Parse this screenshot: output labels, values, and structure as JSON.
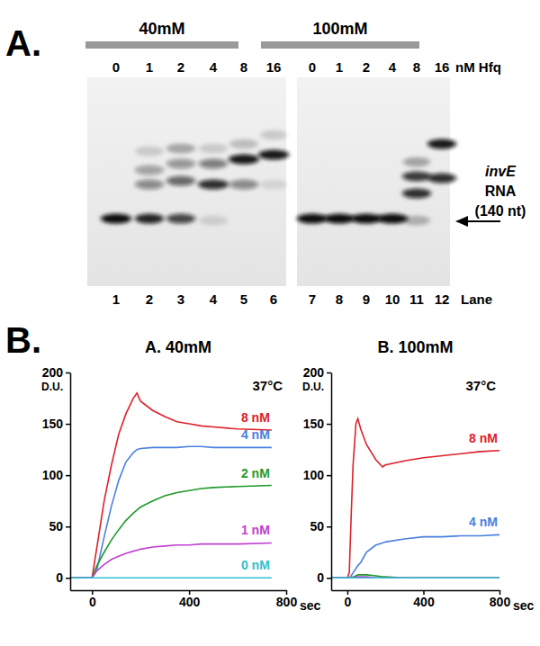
{
  "gel": {
    "panel_label": "A.",
    "panels": [
      {
        "label": "40mM",
        "concentrations": [
          0,
          1,
          2,
          4,
          8,
          16
        ],
        "lanes": [
          1,
          2,
          3,
          4,
          5,
          6
        ]
      },
      {
        "label": "100mM",
        "concentrations": [
          0,
          1,
          2,
          4,
          8,
          16
        ],
        "lanes": [
          7,
          8,
          9,
          10,
          11,
          12
        ]
      }
    ],
    "unit": "nM Hfq",
    "rna_label": [
      "invE",
      "RNA",
      "(140 nt)"
    ],
    "lane_title": "Lane"
  },
  "charts_label": "B.",
  "chart_data": [
    {
      "type": "line",
      "title": "A. 40mM",
      "annotation": "37°C",
      "ylabel": "D.U.",
      "xlabel": "sec",
      "x": [
        -90,
        0,
        20,
        50,
        80,
        110,
        140,
        170,
        185,
        200,
        250,
        300,
        350,
        400,
        450,
        500,
        600,
        740
      ],
      "series": [
        {
          "name": "8 nM",
          "color": "#e0202a",
          "values": [
            0,
            0,
            30,
            75,
            110,
            140,
            160,
            175,
            180,
            172,
            163,
            157,
            152,
            150,
            148,
            147,
            145,
            144
          ]
        },
        {
          "name": "4 nM",
          "color": "#4a80e0",
          "values": [
            0,
            0,
            8,
            40,
            70,
            95,
            113,
            122,
            125,
            126,
            127,
            127,
            127,
            128,
            128,
            127,
            127,
            127
          ]
        },
        {
          "name": "2 nM",
          "color": "#1f9a2a",
          "values": [
            0,
            0,
            12,
            25,
            37,
            47,
            56,
            63,
            66,
            69,
            75,
            80,
            83,
            85,
            87,
            88,
            89,
            90
          ]
        },
        {
          "name": "1 nM",
          "color": "#c040d0",
          "values": [
            0,
            0,
            7,
            13,
            18,
            21,
            24,
            26,
            27,
            28,
            30,
            31,
            32,
            32,
            33,
            33,
            33,
            34
          ]
        },
        {
          "name": "0 nM",
          "color": "#30c0d0",
          "values": [
            0,
            0,
            0,
            0,
            0,
            0,
            0,
            0,
            0,
            0,
            0,
            0,
            0,
            0,
            0,
            0,
            0,
            0
          ]
        }
      ],
      "xlim": [
        -90,
        800
      ],
      "ylim": [
        -12,
        200
      ],
      "xticks": [
        0,
        400,
        800
      ],
      "yticks": [
        0,
        50,
        100,
        150,
        200
      ]
    },
    {
      "type": "line",
      "title": "B. 100mM",
      "annotation": "37°C",
      "ylabel": "D.U.",
      "xlabel": "sec",
      "x": [
        -85,
        0,
        10,
        20,
        30,
        45,
        55,
        70,
        100,
        150,
        185,
        200,
        300,
        400,
        500,
        600,
        700,
        800
      ],
      "series": [
        {
          "name": "8 nM",
          "color": "#e0202a",
          "values": [
            0,
            0,
            5,
            60,
            110,
            150,
            155,
            145,
            130,
            115,
            108,
            110,
            114,
            117,
            119,
            121,
            123,
            124
          ]
        },
        {
          "name": "4 nM",
          "color": "#4a80e0",
          "values": [
            0,
            0,
            0,
            2,
            5,
            9,
            12,
            15,
            25,
            32,
            34,
            35,
            38,
            40,
            40,
            41,
            41,
            42
          ]
        },
        {
          "color": "#1f9a2a",
          "values": [
            0,
            0,
            0,
            0,
            1,
            2,
            3,
            3,
            3,
            2,
            1,
            1,
            0,
            0,
            0,
            0,
            0,
            0
          ]
        },
        {
          "color": "#c040d0",
          "values": [
            0,
            0,
            0,
            0,
            0,
            1,
            1,
            1,
            1,
            0,
            0,
            0,
            0,
            0,
            0,
            0,
            0,
            0
          ]
        },
        {
          "color": "#30c0d0",
          "values": [
            0,
            0,
            0,
            0,
            0,
            0,
            0,
            0,
            0,
            0,
            0,
            0,
            0,
            0,
            0,
            0,
            0,
            0
          ]
        }
      ],
      "xlim": [
        -85,
        800
      ],
      "ylim": [
        -12,
        200
      ],
      "xticks": [
        0,
        400,
        800
      ],
      "yticks": [
        0,
        50,
        100,
        150,
        200
      ]
    }
  ]
}
